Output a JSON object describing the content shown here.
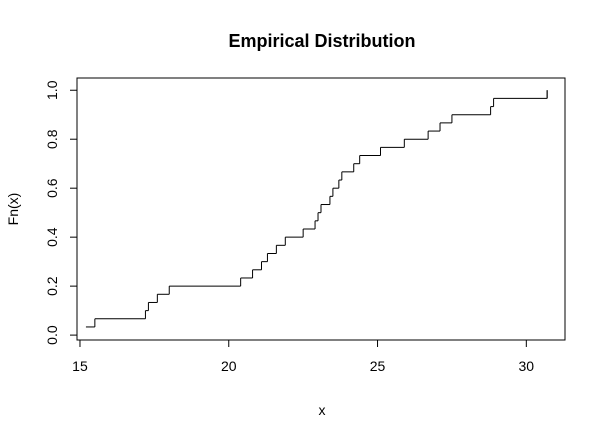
{
  "chart_data": {
    "type": "line",
    "title": "Empirical Distribution",
    "xlabel": "x",
    "ylabel": "Fn(x)",
    "xlim": [
      14.9,
      31.3
    ],
    "ylim": [
      -0.02,
      1.05
    ],
    "x_ticks": [
      15,
      20,
      25,
      30
    ],
    "y_ticks": [
      0.0,
      0.2,
      0.4,
      0.6,
      0.8,
      1.0
    ],
    "x_tick_labels": [
      "15",
      "20",
      "25",
      "30"
    ],
    "y_tick_labels": [
      "0.0",
      "0.2",
      "0.4",
      "0.6",
      "0.8",
      "1.0"
    ],
    "grid": false,
    "legend": "none",
    "series": [
      {
        "steps": [
          {
            "x": 15.2,
            "y": 0.0333
          },
          {
            "x": 15.5,
            "y": 0.0667
          },
          {
            "x": 17.2,
            "y": 0.1
          },
          {
            "x": 17.3,
            "y": 0.1333
          },
          {
            "x": 17.6,
            "y": 0.1667
          },
          {
            "x": 18.0,
            "y": 0.2
          },
          {
            "x": 20.4,
            "y": 0.2333
          },
          {
            "x": 20.8,
            "y": 0.2667
          },
          {
            "x": 21.1,
            "y": 0.3
          },
          {
            "x": 21.3,
            "y": 0.3333
          },
          {
            "x": 21.6,
            "y": 0.3667
          },
          {
            "x": 21.9,
            "y": 0.4
          },
          {
            "x": 22.5,
            "y": 0.4333
          },
          {
            "x": 22.9,
            "y": 0.4667
          },
          {
            "x": 23.0,
            "y": 0.5
          },
          {
            "x": 23.1,
            "y": 0.5333
          },
          {
            "x": 23.4,
            "y": 0.5667
          },
          {
            "x": 23.5,
            "y": 0.6
          },
          {
            "x": 23.7,
            "y": 0.6333
          },
          {
            "x": 23.8,
            "y": 0.6667
          },
          {
            "x": 24.2,
            "y": 0.7
          },
          {
            "x": 24.4,
            "y": 0.7333
          },
          {
            "x": 25.1,
            "y": 0.7667
          },
          {
            "x": 25.9,
            "y": 0.8
          },
          {
            "x": 26.7,
            "y": 0.8333
          },
          {
            "x": 27.1,
            "y": 0.8667
          },
          {
            "x": 27.5,
            "y": 0.9
          },
          {
            "x": 28.8,
            "y": 0.9333
          },
          {
            "x": 28.9,
            "y": 0.9667
          },
          {
            "x": 30.7,
            "y": 1.0
          }
        ]
      }
    ]
  }
}
